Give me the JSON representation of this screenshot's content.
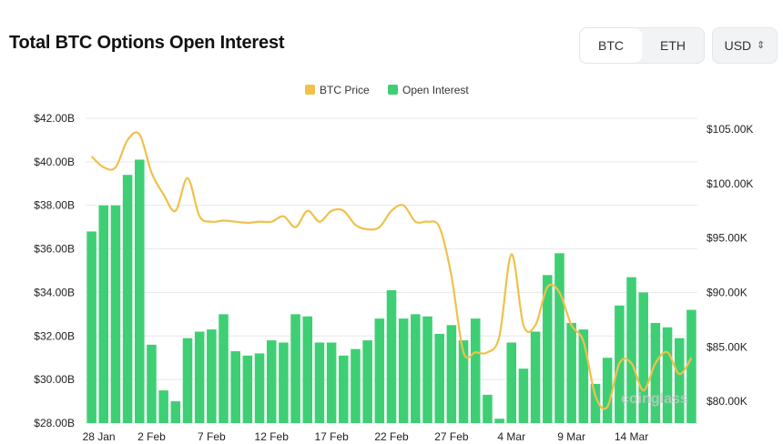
{
  "header": {
    "title": "Total BTC Options Open Interest",
    "asset_options": [
      "BTC",
      "ETH"
    ],
    "selected_asset": "BTC",
    "currency": "USD"
  },
  "watermark": "coinglass",
  "colors": {
    "bar": "#3ecf74",
    "line": "#f0c14b",
    "grid": "#e8e8e8",
    "axis_text": "#222222"
  },
  "chart_data": {
    "type": "bar",
    "legend": [
      "BTC Price",
      "Open Interest"
    ],
    "legend_position": "top-center",
    "grid": true,
    "x_labels": [
      "28 Jan",
      "2 Feb",
      "7 Feb",
      "12 Feb",
      "17 Feb",
      "22 Feb",
      "27 Feb",
      "4 Mar",
      "9 Mar",
      "14 Mar"
    ],
    "y_left": {
      "ticks": [
        "$28.00B",
        "$30.00B",
        "$32.00B",
        "$34.00B",
        "$36.00B",
        "$38.00B",
        "$40.00B",
        "$42.00B"
      ],
      "range": [
        28,
        42
      ]
    },
    "y_right": {
      "ticks": [
        "$80.00K",
        "$85.00K",
        "$90.00K",
        "$95.00K",
        "$100.00K",
        "$105.00K"
      ],
      "range": [
        78,
        106
      ]
    },
    "series": [
      {
        "name": "Open Interest",
        "unit": "B USD",
        "values": [
          36.8,
          38.0,
          38.0,
          39.4,
          40.1,
          31.6,
          29.5,
          29.0,
          31.9,
          32.2,
          32.3,
          33.0,
          31.3,
          31.1,
          31.2,
          31.8,
          31.7,
          33.0,
          32.9,
          31.7,
          31.7,
          31.1,
          31.4,
          31.8,
          32.8,
          34.1,
          32.8,
          33.0,
          32.9,
          32.1,
          32.5,
          31.8,
          32.8,
          29.3,
          28.2,
          31.7,
          30.5,
          32.2,
          34.8,
          35.8,
          32.6,
          32.3,
          29.8,
          31.0,
          33.4,
          34.7,
          34.0,
          32.6,
          32.4,
          31.9,
          33.2
        ]
      },
      {
        "name": "BTC Price",
        "unit": "K USD",
        "values": [
          102.5,
          101.5,
          101.5,
          104.0,
          104.5,
          101.0,
          99.0,
          97.5,
          100.5,
          97.0,
          96.5,
          96.6,
          96.5,
          96.4,
          96.5,
          96.5,
          97.0,
          96.0,
          97.5,
          96.5,
          97.5,
          97.5,
          96.2,
          95.8,
          96.0,
          97.5,
          98.0,
          96.5,
          96.5,
          96.0,
          91.5,
          84.5,
          84.5,
          84.5,
          86.0,
          93.5,
          87.0,
          87.0,
          90.5,
          90.0,
          87.0,
          85.5,
          80.5,
          79.5,
          83.5,
          83.5,
          81.0,
          83.5,
          84.5,
          82.5,
          84.0
        ]
      }
    ]
  }
}
